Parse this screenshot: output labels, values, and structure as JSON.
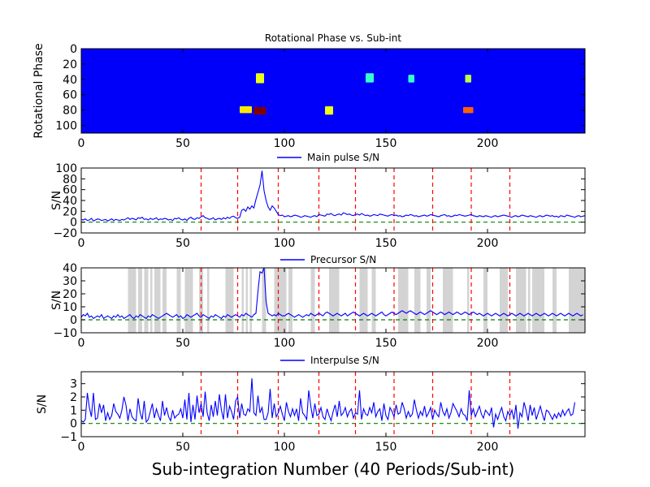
{
  "figure": {
    "xlabel": "Sub-integration Number (40 Periods/Sub-int)",
    "colors": {
      "series": "#0000ff",
      "ref_line": "#ff0000",
      "zero_line": "#008000",
      "shade": "#d3d3d3",
      "axis": "#000000"
    }
  },
  "chart_data": [
    {
      "type": "heatmap",
      "title": "Rotational Phase vs. Sub-int",
      "ylabel": "Rotational Phase",
      "xlim": [
        0,
        248
      ],
      "ylim": [
        110,
        0
      ],
      "xticks": [
        0,
        50,
        100,
        150,
        200
      ],
      "yticks": [
        0,
        20,
        40,
        60,
        80,
        100
      ],
      "colormap": "jet",
      "bright_regions": [
        {
          "x": [
            85,
            91
          ],
          "y": [
            76,
            86
          ],
          "level": 1.0
        },
        {
          "x": [
            78,
            84
          ],
          "y": [
            75,
            84
          ],
          "level": 0.6
        },
        {
          "x": [
            86,
            90
          ],
          "y": [
            32,
            45
          ],
          "level": 0.55
        },
        {
          "x": [
            188,
            193
          ],
          "y": [
            76,
            84
          ],
          "level": 0.75
        },
        {
          "x": [
            120,
            124
          ],
          "y": [
            75,
            86
          ],
          "level": 0.55
        },
        {
          "x": [
            189,
            192
          ],
          "y": [
            34,
            44
          ],
          "level": 0.5
        },
        {
          "x": [
            140,
            144
          ],
          "y": [
            32,
            44
          ],
          "level": 0.35
        },
        {
          "x": [
            161,
            164
          ],
          "y": [
            34,
            44
          ],
          "level": 0.35
        }
      ]
    },
    {
      "type": "line",
      "title": "",
      "ylabel": "S/N",
      "legend": "Main pulse S/N",
      "legend_position": "top-center",
      "xlim": [
        0,
        248
      ],
      "ylim": [
        -20,
        100
      ],
      "xticks": [
        0,
        50,
        100,
        150,
        200
      ],
      "yticks": [
        -20,
        0,
        20,
        40,
        60,
        80,
        100
      ],
      "x_start": 0,
      "x_step": 1,
      "y": [
        5,
        4,
        6,
        3,
        4,
        7,
        2,
        4,
        6,
        5,
        3,
        4,
        5,
        2,
        4,
        6,
        3,
        5,
        4,
        3,
        5,
        4,
        6,
        8,
        5,
        7,
        6,
        4,
        8,
        7,
        9,
        5,
        6,
        4,
        7,
        5,
        6,
        8,
        4,
        6,
        5,
        7,
        6,
        4,
        5,
        3,
        7,
        6,
        8,
        5,
        4,
        6,
        3,
        7,
        9,
        6,
        5,
        8,
        7,
        10,
        12,
        8,
        7,
        5,
        6,
        8,
        4,
        6,
        7,
        5,
        8,
        6,
        9,
        7,
        10,
        11,
        8,
        7,
        9,
        22,
        24,
        20,
        28,
        24,
        30,
        26,
        42,
        55,
        68,
        95,
        58,
        40,
        28,
        22,
        30,
        26,
        20,
        14,
        12,
        13,
        10,
        11,
        12,
        10,
        11,
        13,
        12,
        11,
        9,
        10,
        12,
        11,
        10,
        9,
        11,
        12,
        10,
        14,
        13,
        12,
        11,
        15,
        14,
        16,
        13,
        12,
        14,
        15,
        13,
        17,
        16,
        14,
        15,
        13,
        12,
        14,
        15,
        13,
        16,
        14,
        12,
        13,
        11,
        12,
        14,
        13,
        12,
        15,
        14,
        13,
        12,
        11,
        13,
        14,
        12,
        13,
        11,
        12,
        10,
        11,
        13,
        12,
        14,
        13,
        11,
        12,
        10,
        11,
        12,
        13,
        11,
        12,
        14,
        13,
        12,
        11,
        10,
        12,
        13,
        14,
        11,
        12,
        10,
        11,
        13,
        12,
        14,
        13,
        12,
        11,
        12,
        13,
        14,
        12,
        11,
        10,
        12,
        11,
        10,
        12,
        11,
        10,
        9,
        11,
        12,
        10,
        11,
        12,
        13,
        12,
        11,
        10,
        9,
        11,
        12,
        10,
        11,
        13,
        12,
        11,
        10,
        12,
        11,
        10,
        9,
        11,
        12,
        10,
        11,
        13,
        12,
        11,
        12,
        10,
        11,
        9,
        12,
        11,
        10,
        13,
        12,
        11,
        10,
        9,
        11,
        12,
        10,
        11,
        12,
        9
      ],
      "ref_lines_x": [
        59,
        77,
        97,
        117,
        135,
        154,
        173,
        192,
        211
      ]
    },
    {
      "type": "line",
      "title": "",
      "ylabel": "S/N",
      "legend": "Precursor S/N",
      "legend_position": "top-center",
      "xlim": [
        0,
        248
      ],
      "ylim": [
        -10,
        40
      ],
      "xticks": [
        0,
        50,
        100,
        150,
        200
      ],
      "yticks": [
        -10,
        0,
        10,
        20,
        30,
        40
      ],
      "x_start": 0,
      "x_step": 1,
      "y": [
        2,
        4,
        3,
        5,
        2,
        3,
        1,
        2,
        3,
        2,
        4,
        1,
        2,
        3,
        2,
        1,
        3,
        2,
        4,
        2,
        3,
        1,
        2,
        3,
        4,
        2,
        1,
        3,
        2,
        4,
        3,
        2,
        1,
        3,
        2,
        4,
        3,
        2,
        1,
        2,
        3,
        4,
        5,
        4,
        3,
        2,
        3,
        4,
        2,
        3,
        1,
        2,
        4,
        3,
        2,
        3,
        4,
        5,
        3,
        2,
        4,
        3,
        2,
        1,
        3,
        2,
        4,
        3,
        2,
        1,
        3,
        2,
        4,
        3,
        2,
        3,
        4,
        3,
        2,
        4,
        3,
        5,
        4,
        3,
        2,
        4,
        5,
        22,
        37,
        36,
        40,
        14,
        5,
        4,
        3,
        4,
        3,
        5,
        4,
        3,
        3,
        4,
        5,
        4,
        3,
        2,
        3,
        4,
        3,
        2,
        3,
        4,
        3,
        5,
        4,
        3,
        4,
        5,
        4,
        3,
        5,
        6,
        5,
        4,
        3,
        4,
        5,
        4,
        3,
        4,
        5,
        3,
        4,
        5,
        6,
        5,
        4,
        3,
        4,
        5,
        4,
        3,
        4,
        5,
        4,
        3,
        4,
        5,
        6,
        4,
        3,
        4,
        5,
        6,
        5,
        4,
        5,
        6,
        7,
        6,
        5,
        6,
        7,
        6,
        5,
        4,
        5,
        6,
        5,
        4,
        5,
        6,
        7,
        6,
        5,
        4,
        5,
        6,
        5,
        4,
        5,
        6,
        5,
        4,
        5,
        6,
        5,
        4,
        5,
        6,
        5,
        4,
        5,
        6,
        5,
        4,
        5,
        4,
        3,
        4,
        5,
        4,
        3,
        4,
        5,
        4,
        3,
        4,
        5,
        4,
        3,
        4,
        5,
        4,
        3,
        4,
        5,
        4,
        3,
        4,
        5,
        4,
        3,
        4,
        5,
        4,
        3,
        4,
        5,
        4,
        3,
        4,
        5,
        4,
        3,
        4,
        5,
        4,
        3,
        4,
        5,
        4,
        3,
        4,
        5,
        4,
        3,
        4
      ],
      "shaded_x_ranges": [
        [
          23,
          27
        ],
        [
          28,
          30
        ],
        [
          31,
          33
        ],
        [
          34,
          35
        ],
        [
          36,
          39
        ],
        [
          40,
          42
        ],
        [
          47,
          49
        ],
        [
          51,
          55
        ],
        [
          58,
          60
        ],
        [
          62,
          63
        ],
        [
          71,
          75
        ],
        [
          79,
          80
        ],
        [
          81,
          82
        ],
        [
          83,
          84
        ],
        [
          89,
          91
        ],
        [
          95,
          96
        ],
        [
          96,
          101
        ],
        [
          102,
          104
        ],
        [
          113,
          115
        ],
        [
          122,
          124
        ],
        [
          124,
          127
        ],
        [
          137,
          141
        ],
        [
          143,
          145
        ],
        [
          156,
          158
        ],
        [
          158,
          161
        ],
        [
          164,
          167
        ],
        [
          170,
          172
        ],
        [
          178,
          181
        ],
        [
          181,
          183
        ],
        [
          190,
          191
        ],
        [
          198,
          200
        ],
        [
          206,
          208
        ],
        [
          208,
          210
        ],
        [
          214,
          219
        ],
        [
          220,
          221
        ],
        [
          222,
          225
        ],
        [
          225,
          228
        ],
        [
          232,
          234
        ],
        [
          240,
          244
        ],
        [
          244,
          248
        ]
      ],
      "ref_lines_x": [
        59,
        77,
        97,
        117,
        135,
        154,
        173,
        192,
        211
      ]
    },
    {
      "type": "line",
      "title": "",
      "ylabel": "S/N",
      "legend": "Interpulse S/N",
      "legend_position": "top-center",
      "xlim": [
        0,
        248
      ],
      "ylim": [
        -1,
        3.9
      ],
      "xticks": [
        0,
        50,
        100,
        150,
        200
      ],
      "yticks": [
        -1,
        0,
        1,
        2,
        3
      ],
      "x_start": 0,
      "x_step": 1,
      "y": [
        0.2,
        0.1,
        0.3,
        2.3,
        1.2,
        0.5,
        2.3,
        0.3,
        0.4,
        1.5,
        0.8,
        1.4,
        0.2,
        0.8,
        0.3,
        0.6,
        1.5,
        0.9,
        0.7,
        0.4,
        1.0,
        2.0,
        1.4,
        0.2,
        1.1,
        0.5,
        0.3,
        0.2,
        1.9,
        0.8,
        0.3,
        1.7,
        0.1,
        0.3,
        0.9,
        1.5,
        0.4,
        1.1,
        0.6,
        0.2,
        1.7,
        0.6,
        1.2,
        0.5,
        0.2,
        1.0,
        0.4,
        0.6,
        0.7,
        1.1,
        0.4,
        1.8,
        0.3,
        2.3,
        0.1,
        1.4,
        0.3,
        2.1,
        0.8,
        1.5,
        0.5,
        2.4,
        0.8,
        0.2,
        1.4,
        0.5,
        1.7,
        0.6,
        2.2,
        1.0,
        0.3,
        2.2,
        0.4,
        1.3,
        0.9,
        0.3,
        1.7,
        2.0,
        0.4,
        1.5,
        0.7,
        0.6,
        1.1,
        0.9,
        3.4,
        0.8,
        0.6,
        2.1,
        0.8,
        1.2,
        0.3,
        0.3,
        0.8,
        2.6,
        0.4,
        1.5,
        0.5,
        0.8,
        1.3,
        0.7,
        0.2,
        1.6,
        0.9,
        0.5,
        1.1,
        0.6,
        1.1,
        0.2,
        1.9,
        0.8,
        0.6,
        0.3,
        2.5,
        1.3,
        0.4,
        1.5,
        0.6,
        0.7,
        1.2,
        0.5,
        0.3,
        1.1,
        0.6,
        0.2,
        0.9,
        1.4,
        0.5,
        1.7,
        0.6,
        0.8,
        1.2,
        0.5,
        0.9,
        1.1,
        0.4,
        0.8,
        0.7,
        2.5,
        0.3,
        1.1,
        0.7,
        0.6,
        1.2,
        0.8,
        1.6,
        0.5,
        0.9,
        1.1,
        0.2,
        1.5,
        0.6,
        0.3,
        1.2,
        0.9,
        0.5,
        1.4,
        0.7,
        0.8,
        1.6,
        1.1,
        0.4,
        0.9,
        0.5,
        0.7,
        1.8,
        1.0,
        0.4,
        0.9,
        0.6,
        1.3,
        0.5,
        0.8,
        1.2,
        0.3,
        1.0,
        0.7,
        0.5,
        1.6,
        0.9,
        0.6,
        1.1,
        0.4,
        0.8,
        1.5,
        1.2,
        0.9,
        0.5,
        1.1,
        0.7,
        0.6,
        0.2,
        2.5,
        0.6,
        1.1,
        0.5,
        0.9,
        1.3,
        0.7,
        0.4,
        1.0,
        0.8,
        0.6,
        1.2,
        -0.3,
        0.7,
        0.3,
        0.8,
        1.2,
        0.5,
        0.2,
        0.9,
        0.6,
        1.0,
        0.3,
        1.4,
        -0.4,
        0.8,
        0.5,
        1.6,
        1.0,
        0.2,
        1.4,
        0.6,
        1.2,
        0.3,
        0.8,
        1.3,
        0.7,
        0.2,
        1.0,
        0.9,
        0.6,
        0.3,
        0.7,
        0.4,
        0.8,
        0.5,
        1.0,
        0.6,
        0.9,
        1.1,
        0.6,
        0.7,
        1.6
      ],
      "ref_lines_x": [
        59,
        77,
        97,
        117,
        135,
        154,
        173,
        192,
        211
      ]
    }
  ]
}
